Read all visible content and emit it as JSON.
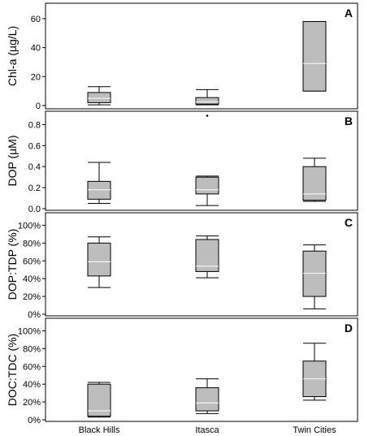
{
  "chart_data": {
    "type": "box",
    "categories": [
      "Black Hills",
      "Itasca",
      "Twin Cities"
    ],
    "colors": {
      "box_fill": "#bdbdbd",
      "stroke": "#000000"
    },
    "panels": [
      {
        "label": "A",
        "ylabel": "Chl-a (µg/L)",
        "ylim": [
          0,
          65
        ],
        "yticks": [
          0,
          20,
          40,
          60
        ],
        "yticklabels": [
          "0",
          "20",
          "40",
          "60"
        ],
        "boxes": [
          {
            "category": "Black Hills",
            "min": 0.5,
            "q1": 2,
            "median": 5,
            "q3": 9,
            "max": 13,
            "outliers": []
          },
          {
            "category": "Itasca",
            "min": 0.5,
            "q1": 1,
            "median": 2.5,
            "q3": 5.5,
            "max": 11,
            "outliers": [
              -7
            ]
          },
          {
            "category": "Twin Cities",
            "min": 10,
            "q1": 10,
            "median": 29,
            "q3": 58,
            "max": 58,
            "outliers": []
          }
        ]
      },
      {
        "label": "B",
        "ylabel": "DOP (µM)",
        "ylim": [
          0,
          0.85
        ],
        "yticks": [
          0,
          0.2,
          0.4,
          0.6,
          0.8
        ],
        "yticklabels": [
          "0.0",
          "0.2",
          "0.4",
          "0.6",
          "0.8"
        ],
        "boxes": [
          {
            "category": "Black Hills",
            "min": 0.05,
            "q1": 0.09,
            "median": 0.18,
            "q3": 0.26,
            "max": 0.44,
            "outliers": []
          },
          {
            "category": "Itasca",
            "min": 0.03,
            "q1": 0.14,
            "median": 0.18,
            "q3": 0.3,
            "max": 0.31,
            "outliers": []
          },
          {
            "category": "Twin Cities",
            "min": 0.07,
            "q1": 0.08,
            "median": 0.14,
            "q3": 0.4,
            "max": 0.48,
            "outliers": []
          }
        ]
      },
      {
        "label": "C",
        "ylabel": "DOP:TDP (%)",
        "ylim": [
          0,
          105
        ],
        "yticks": [
          0,
          20,
          40,
          60,
          80,
          100
        ],
        "yticklabels": [
          "0%",
          "20%",
          "40%",
          "60%",
          "80%",
          "100%"
        ],
        "boxes": [
          {
            "category": "Black Hills",
            "min": 30,
            "q1": 43,
            "median": 59,
            "q3": 80,
            "max": 87,
            "outliers": []
          },
          {
            "category": "Itasca",
            "min": 41,
            "q1": 48,
            "median": 54,
            "q3": 84,
            "max": 88,
            "outliers": []
          },
          {
            "category": "Twin Cities",
            "min": 6,
            "q1": 20,
            "median": 46,
            "q3": 71,
            "max": 78,
            "outliers": []
          }
        ]
      },
      {
        "label": "D",
        "ylabel": "DOC:TDC (%)",
        "ylim": [
          0,
          105
        ],
        "yticks": [
          0,
          20,
          40,
          60,
          80,
          100
        ],
        "yticklabels": [
          "0%",
          "20%",
          "40%",
          "60%",
          "80%",
          "100%"
        ],
        "boxes": [
          {
            "category": "Black Hills",
            "min": 3,
            "q1": 4,
            "median": 10,
            "q3": 40,
            "max": 42,
            "outliers": []
          },
          {
            "category": "Itasca",
            "min": 7,
            "q1": 10,
            "median": 19,
            "q3": 36,
            "max": 46,
            "outliers": []
          },
          {
            "category": "Twin Cities",
            "min": 22,
            "q1": 26,
            "median": 46,
            "q3": 66,
            "max": 86,
            "outliers": []
          }
        ]
      }
    ]
  }
}
